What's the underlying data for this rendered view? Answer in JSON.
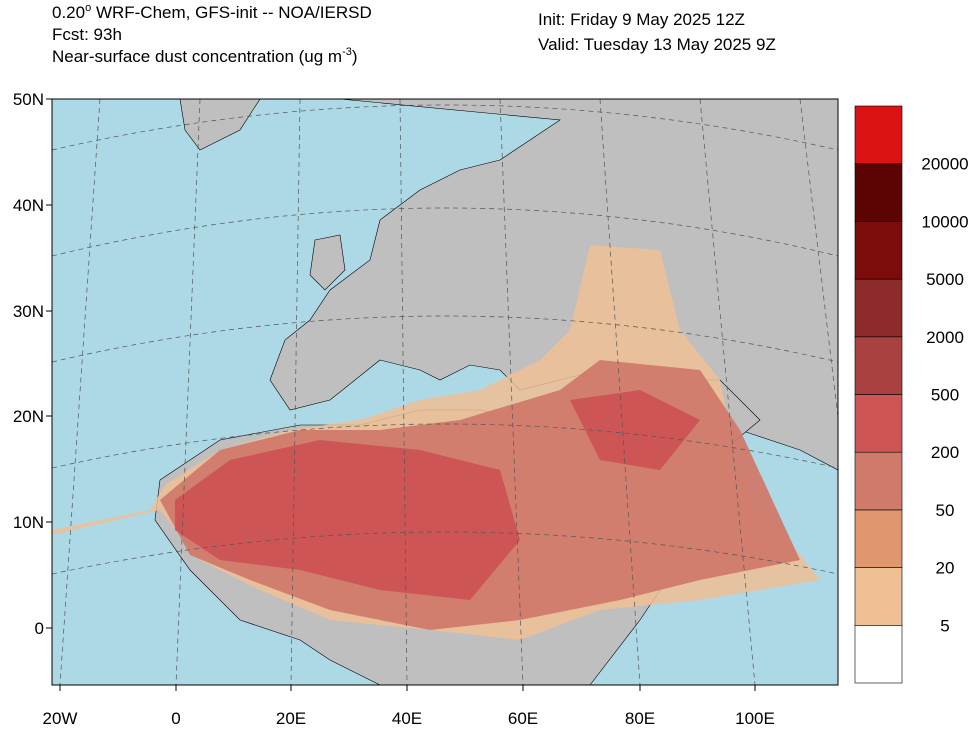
{
  "header": {
    "line1_prefix": "0.20",
    "line1_degree": "o",
    "line1_rest": " WRF-Chem, GFS-init -- NOA/IERSD",
    "forecast": "Fcst: 93h",
    "field_prefix": "Near-surface dust concentration (ug m",
    "field_exponent": "-3",
    "field_suffix": ")",
    "init": "Init: Friday 9 May 2025  12Z",
    "valid": "Valid: Tuesday 13 May 2025  9Z"
  },
  "map": {
    "lat_labels": [
      "50N",
      "40N",
      "30N",
      "20N",
      "10N",
      "0"
    ],
    "lon_labels": [
      "20W",
      "0",
      "20E",
      "40E",
      "60E",
      "80E",
      "100E"
    ]
  },
  "colorbar": {
    "levels": [
      5,
      20,
      50,
      200,
      500,
      2000,
      5000,
      10000,
      20000
    ],
    "colors": [
      "#ffffff",
      "#efc094",
      "#e0966f",
      "#d07a6c",
      "#cd5555",
      "#aa4141",
      "#8d2a2a",
      "#7c0b0b",
      "#5c0404",
      "#dd1212"
    ]
  }
}
